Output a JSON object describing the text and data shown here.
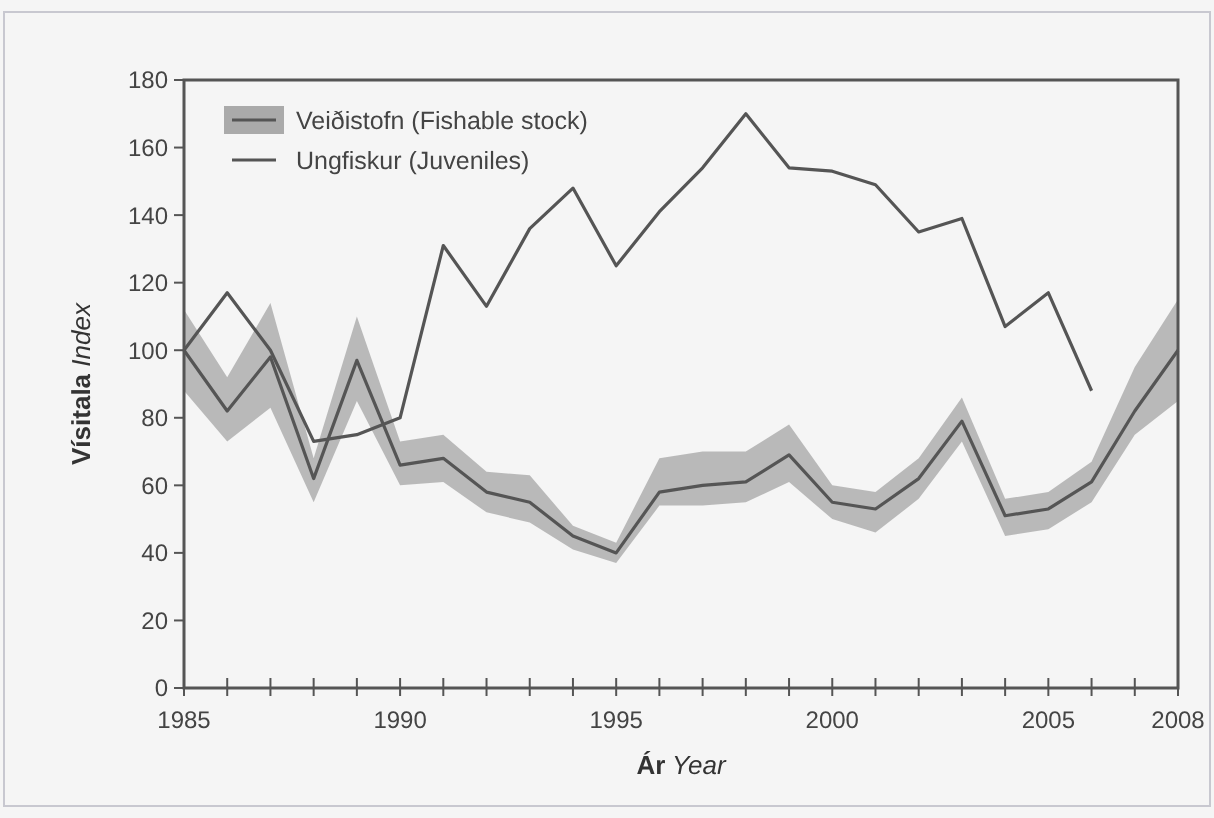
{
  "chart_data": {
    "type": "line",
    "xlabel": "Ár Year",
    "ylabel": "Vísitala Index",
    "x": [
      1985,
      1986,
      1987,
      1988,
      1989,
      1990,
      1991,
      1992,
      1993,
      1994,
      1995,
      1996,
      1997,
      1998,
      1999,
      2000,
      2001,
      2002,
      2003,
      2004,
      2005,
      2006,
      2007,
      2008
    ],
    "series": [
      {
        "name": "Veiðistofn (Fishable stock)",
        "color": "#555555",
        "values": [
          100,
          82,
          98,
          62,
          97,
          66,
          68,
          58,
          55,
          45,
          40,
          58,
          60,
          61,
          69,
          55,
          53,
          62,
          79,
          51,
          53,
          61,
          82,
          100
        ],
        "lower": [
          88,
          73,
          83,
          55,
          85,
          60,
          61,
          52,
          49,
          41,
          37,
          54,
          54,
          55,
          61,
          50,
          46,
          56,
          73,
          45,
          47,
          55,
          75,
          85
        ],
        "upper": [
          112,
          92,
          114,
          68,
          110,
          73,
          75,
          64,
          63,
          48,
          43,
          68,
          70,
          70,
          78,
          60,
          58,
          68,
          86,
          56,
          58,
          67,
          95,
          115
        ]
      },
      {
        "name": "Ungfiskur (Juveniles)",
        "color": "#555555",
        "values": [
          100,
          117,
          100,
          73,
          75,
          80,
          131,
          113,
          136,
          148,
          125,
          141,
          154,
          170,
          154,
          153,
          149,
          135,
          139,
          107,
          117,
          88,
          null,
          null
        ]
      }
    ],
    "xlim": [
      1985,
      2008
    ],
    "xticks": [
      1985,
      {
        "value": 1986,
        "label": null
      },
      {
        "value": 1987,
        "label": null
      },
      {
        "value": 1988,
        "label": null
      },
      {
        "value": 1989,
        "label": null
      },
      1990,
      {
        "value": 1991,
        "label": null
      },
      {
        "value": 1992,
        "label": null
      },
      {
        "value": 1993,
        "label": null
      },
      {
        "value": 1994,
        "label": null
      },
      1995,
      {
        "value": 1996,
        "label": null
      },
      {
        "value": 1997,
        "label": null
      },
      {
        "value": 1998,
        "label": null
      },
      {
        "value": 1999,
        "label": null
      },
      2000,
      {
        "value": 2001,
        "label": null
      },
      {
        "value": 2002,
        "label": null
      },
      {
        "value": 2003,
        "label": null
      },
      {
        "value": 2004,
        "label": null
      },
      2005,
      {
        "value": 2006,
        "label": null
      },
      {
        "value": 2007,
        "label": null
      },
      2008
    ],
    "ylim": [
      0,
      180
    ],
    "yticks": [
      0,
      20,
      40,
      60,
      80,
      100,
      120,
      140,
      160,
      180
    ],
    "grid": false,
    "legend": "top left",
    "marker": "none",
    "line_style": "solid"
  }
}
